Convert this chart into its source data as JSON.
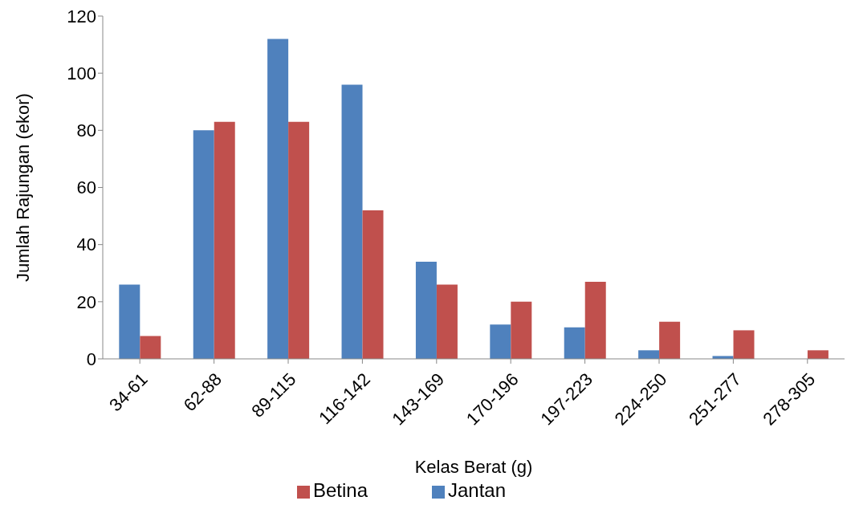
{
  "chart_data": {
    "type": "bar",
    "xlabel": "Kelas Berat (g)",
    "ylabel": "Jumlah Rajungan (ekor)",
    "categories": [
      "34-61",
      "62-88",
      "89-115",
      "116-142",
      "143-169",
      "170-196",
      "197-223",
      "224-250",
      "251-277",
      "278-305"
    ],
    "series": [
      {
        "name": "Jantan",
        "color": "#4f81bd",
        "values": [
          26,
          80,
          112,
          96,
          34,
          12,
          11,
          3,
          1,
          0
        ]
      },
      {
        "name": "Betina",
        "color": "#c0504d",
        "values": [
          8,
          83,
          83,
          52,
          26,
          20,
          27,
          13,
          10,
          3
        ]
      }
    ],
    "ylim": [
      0,
      120
    ],
    "yticks": [
      0,
      20,
      40,
      60,
      80,
      100,
      120
    ],
    "grid": false,
    "legend": "bottom"
  }
}
